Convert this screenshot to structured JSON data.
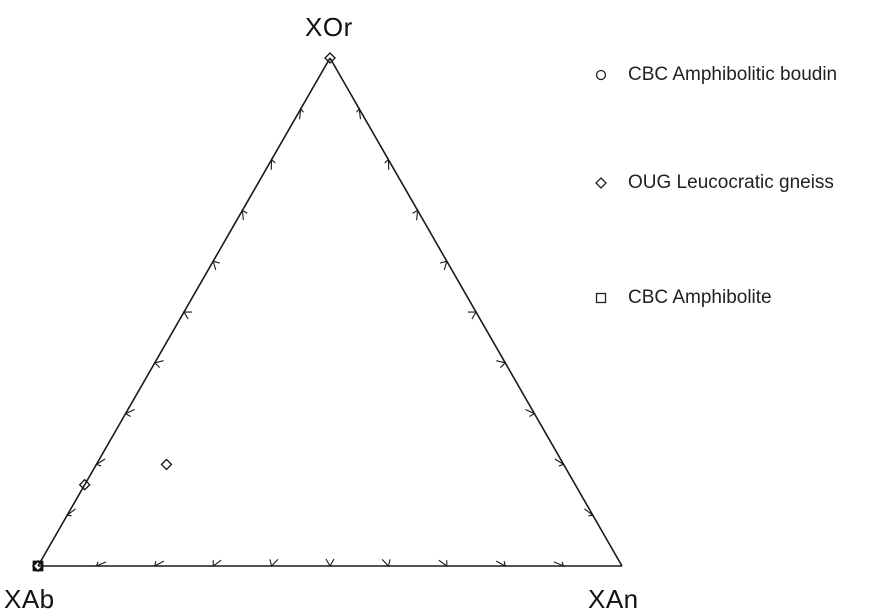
{
  "chart_data": {
    "type": "scatter",
    "subtype": "ternary",
    "title": "",
    "apex_labels": {
      "top": "XOr",
      "left": "XAb",
      "right": "XAn"
    },
    "tick_step": 0.1,
    "legend_placement": "top-right",
    "series": [
      {
        "name": "CBC Amphibolitic boudin",
        "marker": "circle",
        "points": [
          {
            "XAb": 0.86,
            "XAn": 0.0,
            "XOr": 0.0
          },
          {
            "XAb": 0.75,
            "XAn": 0.0,
            "XOr": 0.0
          },
          {
            "XAb": 0.68,
            "XAn": 0.0,
            "XOr": 0.0
          },
          {
            "XAb": 0.66,
            "XAn": 0.0,
            "XOr": 0.0
          }
        ]
      },
      {
        "name": "OUG Leucocratic gneiss",
        "marker": "diamond",
        "points": [
          {
            "XAb": 0.0,
            "XAn": 0.0,
            "XOr": 0.93
          },
          {
            "XAb": 0.84,
            "XAn": 0.0,
            "XOr": 0.16
          },
          {
            "XAb": 0.68,
            "XAn": 0.12,
            "XOr": 0.2
          },
          {
            "XAb": 0.87,
            "XAn": 0.0,
            "XOr": 0.0
          },
          {
            "XAb": 0.84,
            "XAn": 0.0,
            "XOr": 0.0
          },
          {
            "XAb": 0.72,
            "XAn": 0.0,
            "XOr": 0.0
          }
        ]
      },
      {
        "name": "CBC Amphibolite",
        "marker": "square",
        "points": [
          {
            "XAb": 0.89,
            "XAn": 0.0,
            "XOr": 0.0
          },
          {
            "XAb": 0.82,
            "XAn": 0.0,
            "XOr": 0.0
          },
          {
            "XAb": 0.81,
            "XAn": 0.0,
            "XOr": 0.0
          },
          {
            "XAb": 0.71,
            "XAn": 0.0,
            "XOr": 0.0
          }
        ]
      }
    ]
  }
}
